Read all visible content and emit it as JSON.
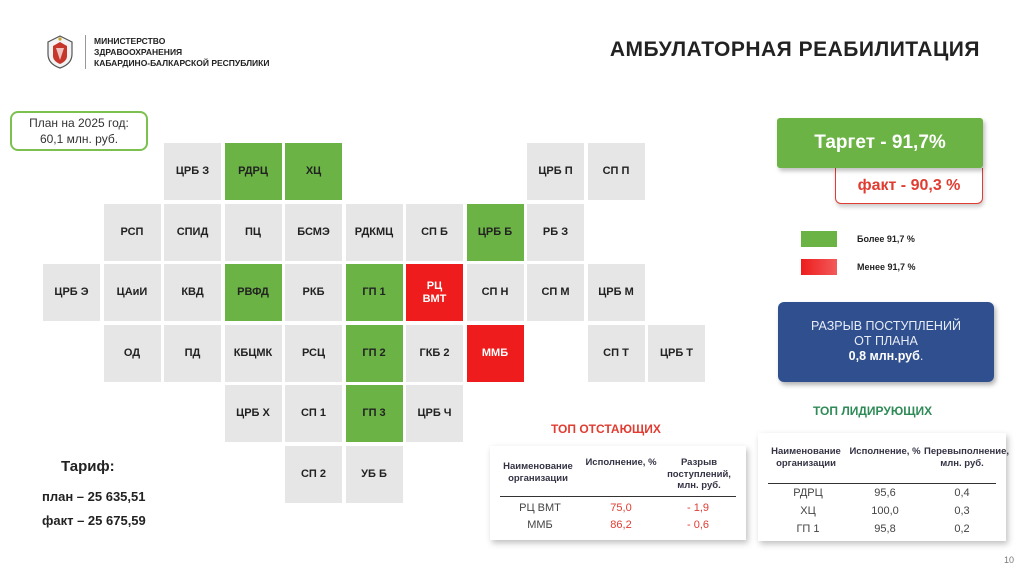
{
  "header": {
    "ministry_lines": [
      "МИНИСТЕРСТВО",
      "ЗДРАВООХРАНЕНИЯ",
      "КАБАРДИНО-БАЛКАРСКОЙ РЕСПУБЛИКИ"
    ],
    "title": "АМБУЛАТОРНАЯ РЕАБИЛИТАЦИЯ"
  },
  "plan": {
    "line1": "План на 2025 год:",
    "line2": "60,1 млн. руб."
  },
  "grid": [
    {
      "label": "ЦРБ З",
      "status": "gray",
      "col": 2,
      "row": 0
    },
    {
      "label": "РДРЦ",
      "status": "green",
      "col": 3,
      "row": 0
    },
    {
      "label": "ХЦ",
      "status": "green",
      "col": 4,
      "row": 0
    },
    {
      "label": "ЦРБ П",
      "status": "gray",
      "col": 8,
      "row": 0
    },
    {
      "label": "СП П",
      "status": "gray",
      "col": 9,
      "row": 0
    },
    {
      "label": "РСП",
      "status": "gray",
      "col": 1,
      "row": 1
    },
    {
      "label": "СПИД",
      "status": "gray",
      "col": 2,
      "row": 1
    },
    {
      "label": "ПЦ",
      "status": "gray",
      "col": 3,
      "row": 1
    },
    {
      "label": "БСМЭ",
      "status": "gray",
      "col": 4,
      "row": 1
    },
    {
      "label": "РДКМЦ",
      "status": "gray",
      "col": 5,
      "row": 1
    },
    {
      "label": "СП Б",
      "status": "gray",
      "col": 6,
      "row": 1
    },
    {
      "label": "ЦРБ Б",
      "status": "green",
      "col": 7,
      "row": 1
    },
    {
      "label": "РБ З",
      "status": "gray",
      "col": 8,
      "row": 1
    },
    {
      "label": "ЦРБ Э",
      "status": "gray",
      "col": 0,
      "row": 2
    },
    {
      "label": "ЦАиИ",
      "status": "gray",
      "col": 1,
      "row": 2
    },
    {
      "label": "КВД",
      "status": "gray",
      "col": 2,
      "row": 2
    },
    {
      "label": "РВФД",
      "status": "green",
      "col": 3,
      "row": 2
    },
    {
      "label": "РКБ",
      "status": "gray",
      "col": 4,
      "row": 2
    },
    {
      "label": "ГП 1",
      "status": "green",
      "col": 5,
      "row": 2
    },
    {
      "label": "РЦ ВМТ",
      "status": "red",
      "col": 6,
      "row": 2
    },
    {
      "label": "СП Н",
      "status": "gray",
      "col": 7,
      "row": 2
    },
    {
      "label": "СП М",
      "status": "gray",
      "col": 8,
      "row": 2
    },
    {
      "label": "ЦРБ М",
      "status": "gray",
      "col": 9,
      "row": 2
    },
    {
      "label": "ОД",
      "status": "gray",
      "col": 1,
      "row": 3
    },
    {
      "label": "ПД",
      "status": "gray",
      "col": 2,
      "row": 3
    },
    {
      "label": "КБЦМК",
      "status": "gray",
      "col": 3,
      "row": 3
    },
    {
      "label": "РСЦ",
      "status": "gray",
      "col": 4,
      "row": 3
    },
    {
      "label": "ГП 2",
      "status": "green",
      "col": 5,
      "row": 3
    },
    {
      "label": "ГКБ 2",
      "status": "gray",
      "col": 6,
      "row": 3
    },
    {
      "label": "ММБ",
      "status": "red",
      "col": 7,
      "row": 3
    },
    {
      "label": "СП Т",
      "status": "gray",
      "col": 9,
      "row": 3
    },
    {
      "label": "ЦРБ Т",
      "status": "gray",
      "col": 10,
      "row": 3
    },
    {
      "label": "ЦРБ Х",
      "status": "gray",
      "col": 3,
      "row": 4
    },
    {
      "label": "СП 1",
      "status": "gray",
      "col": 4,
      "row": 4
    },
    {
      "label": "ГП 3",
      "status": "green",
      "col": 5,
      "row": 4
    },
    {
      "label": "ЦРБ Ч",
      "status": "gray",
      "col": 6,
      "row": 4
    },
    {
      "label": "СП 2",
      "status": "gray",
      "col": 4,
      "row": 5
    },
    {
      "label": "УБ Б",
      "status": "gray",
      "col": 5,
      "row": 5
    }
  ],
  "target": {
    "text": "Таргет  -  91,7%"
  },
  "fact": {
    "text": "факт  - 90,3 %"
  },
  "legend": [
    {
      "label": "Более 91,7 %",
      "color": "#6ab344"
    },
    {
      "label": "Менее 91,7 %",
      "color": "#ee1c1c"
    }
  ],
  "gap": {
    "line1": "РАЗРЫВ ПОСТУПЛЕНИЙ",
    "line2": "ОТ ПЛАНА",
    "value": "0,8 млн.руб",
    "suffix": "."
  },
  "lagging": {
    "title": "ТОП ОТСТАЮЩИХ",
    "title_color": "#e03c31",
    "headers": [
      "Наименование организации",
      "Исполнение, %",
      "Разрыв поступлений, млн. руб."
    ],
    "rows": [
      [
        "РЦ ВМТ",
        "75,0",
        "- 1,9"
      ],
      [
        "ММБ",
        "86,2",
        "- 0,6"
      ]
    ],
    "value_color": "#e03c31"
  },
  "leading": {
    "title": "ТОП ЛИДИРУЮЩИХ",
    "title_color": "#2e8b57",
    "headers": [
      "Наименование организации",
      "Исполнение, %",
      "Перевыполнение, млн. руб."
    ],
    "rows": [
      [
        "РДРЦ",
        "95,6",
        "0,4"
      ],
      [
        "ХЦ",
        "100,0",
        "0,3"
      ],
      [
        "ГП 1",
        "95,8",
        "0,2"
      ]
    ]
  },
  "tariff": {
    "title": "Тариф:",
    "plan": "план – 25 635,51",
    "fact": "факт – 25 675,59"
  },
  "page_number": "10"
}
